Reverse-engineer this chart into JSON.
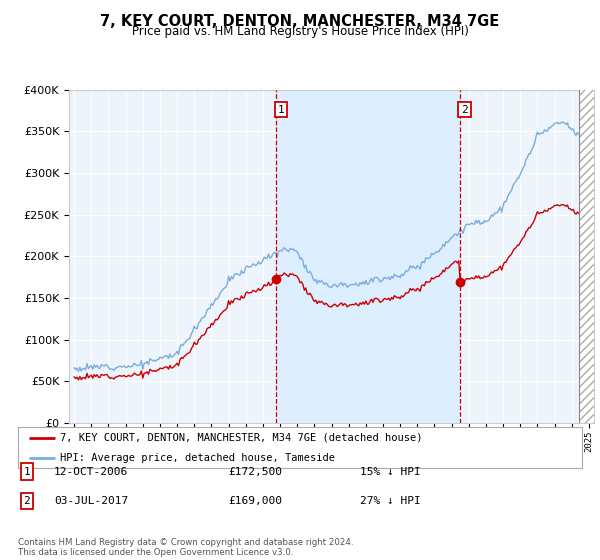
{
  "title": "7, KEY COURT, DENTON, MANCHESTER, M34 7GE",
  "subtitle": "Price paid vs. HM Land Registry's House Price Index (HPI)",
  "legend_line1": "7, KEY COURT, DENTON, MANCHESTER, M34 7GE (detached house)",
  "legend_line2": "HPI: Average price, detached house, Tameside",
  "transaction1_date": "12-OCT-2006",
  "transaction1_price": "£172,500",
  "transaction1_hpi": "15% ↓ HPI",
  "transaction2_date": "03-JUL-2017",
  "transaction2_price": "£169,000",
  "transaction2_hpi": "27% ↓ HPI",
  "footer": "Contains HM Land Registry data © Crown copyright and database right 2024.\nThis data is licensed under the Open Government Licence v3.0.",
  "hpi_color": "#7aaddd",
  "price_color": "#cc0000",
  "vline_color": "#cc0000",
  "shade_color": "#ddeeff",
  "background_color": "#eef4fb",
  "ylim_min": 0,
  "ylim_max": 400000,
  "yticks": [
    0,
    50000,
    100000,
    150000,
    200000,
    250000,
    300000,
    350000,
    400000
  ],
  "marker_price1": 172500,
  "marker_price2": 169000,
  "marker_date1_x": 2006.79,
  "marker_date2_x": 2017.5,
  "hatch_start_x": 2024.42,
  "xlim_min": 1994.7,
  "xlim_max": 2025.3
}
